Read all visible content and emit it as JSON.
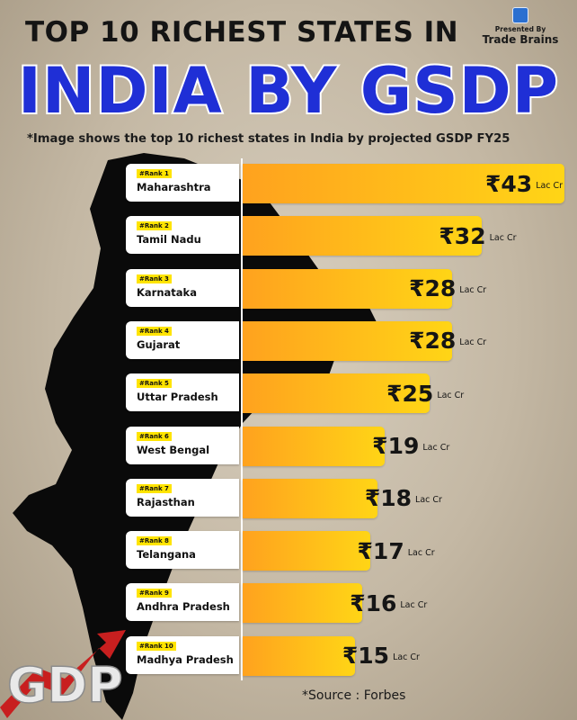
{
  "header": {
    "title_line1": "TOP 10 RICHEST STATES IN",
    "title_line2": "INDIA BY GSDP",
    "presented_by": "Presented By",
    "brand": "Trade Brains"
  },
  "subtitle": "*Image shows the top 10 richest states in India by projected GSDP FY25",
  "chart_data": {
    "type": "bar",
    "orientation": "horizontal",
    "title": "TOP 10 RICHEST STATES IN INDIA BY GSDP",
    "currency_symbol": "₹",
    "unit": "Lac Cr",
    "categories": [
      "Maharashtra",
      "Tamil Nadu",
      "Karnataka",
      "Gujarat",
      "Uttar Pradesh",
      "West Bengal",
      "Rajasthan",
      "Telangana",
      "Andhra Pradesh",
      "Madhya Pradesh"
    ],
    "ranks": [
      "#Rank 1",
      "#Rank 2",
      "#Rank 3",
      "#Rank 4",
      "#Rank 5",
      "#Rank 6",
      "#Rank 7",
      "#Rank 8",
      "#Rank 9",
      "#Rank 10"
    ],
    "values": [
      43,
      32,
      28,
      28,
      25,
      19,
      18,
      17,
      16,
      15
    ],
    "value_labels": [
      "₹43",
      "₹32",
      "₹28",
      "₹28",
      "₹25",
      "₹19",
      "₹18",
      "₹17",
      "₹16",
      "₹15"
    ],
    "bar_color_start": "#ffa21e",
    "bar_color_end": "#ffd516",
    "grid": false
  },
  "decoration": {
    "gdp_text": "GDP",
    "map_color": "#0a0a0a",
    "title_color": "#1f2fd6"
  },
  "source": "*Source : Forbes"
}
